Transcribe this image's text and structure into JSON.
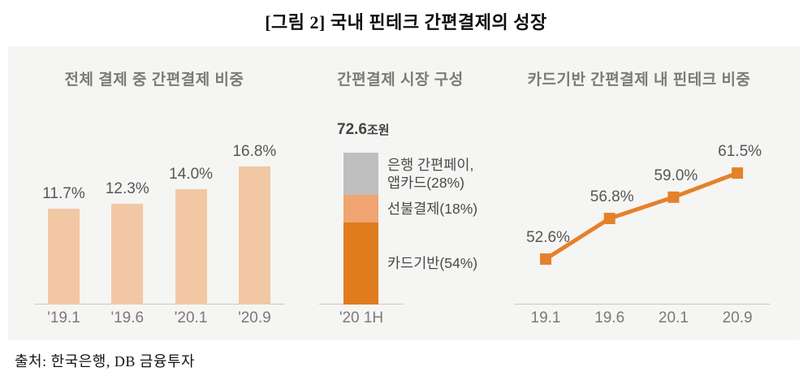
{
  "title": "[그림 2] 국내 핀테크 간편결제의 성장",
  "source": "출처: 한국은행, DB 금융투자",
  "colors": {
    "panel_bg": "#f5f5f3",
    "bar": "#f2c7a4",
    "line": "#e5812a",
    "axis": "#c9c8c6",
    "stack_gray": "#c0bfbf",
    "stack_light_orange": "#f0a472",
    "stack_dark_orange": "#e07c1e"
  },
  "chart_data": [
    {
      "type": "bar",
      "title": "전체 결제 중 간편결제 비중",
      "categories": [
        "'19.1",
        "'19.6",
        "'20.1",
        "'20.9"
      ],
      "values": [
        11.7,
        12.3,
        14.0,
        16.8
      ],
      "value_labels": [
        "11.7%",
        "12.3%",
        "14.0%",
        "16.8%"
      ],
      "ylabel": "",
      "xlabel": "",
      "ylim": [
        0,
        18
      ],
      "grid": "off",
      "legend": "none"
    },
    {
      "type": "bar",
      "subtype": "stacked",
      "title": "간편결제 시장 구성",
      "total_value": "72.6",
      "total_unit": "조원",
      "categories": [
        "'20 1H"
      ],
      "segments": [
        {
          "name": "은행 간편페이, 앱카드",
          "label_lines": [
            "은행 간편페이,",
            "앱카드(28%)"
          ],
          "value": 28,
          "color": "#c0bfbf"
        },
        {
          "name": "선불결제",
          "label_lines": [
            "선불결제(18%)"
          ],
          "value": 18,
          "color": "#f0a472"
        },
        {
          "name": "카드기반",
          "label_lines": [
            "카드기반(54%)"
          ],
          "value": 54,
          "color": "#e07c1e"
        }
      ],
      "ylim": [
        0,
        100
      ],
      "grid": "off",
      "legend": "right-of-bar"
    },
    {
      "type": "line",
      "title": "카드기반 간편결제 내 핀테크 비중",
      "categories": [
        "19.1",
        "19.6",
        "20.1",
        "20.9"
      ],
      "values": [
        52.6,
        56.8,
        59.0,
        61.5
      ],
      "value_labels": [
        "52.6%",
        "56.8%",
        "59.0%",
        "61.5%"
      ],
      "marker": "square",
      "ylim": [
        48,
        64
      ],
      "grid": "off",
      "legend": "none"
    }
  ]
}
